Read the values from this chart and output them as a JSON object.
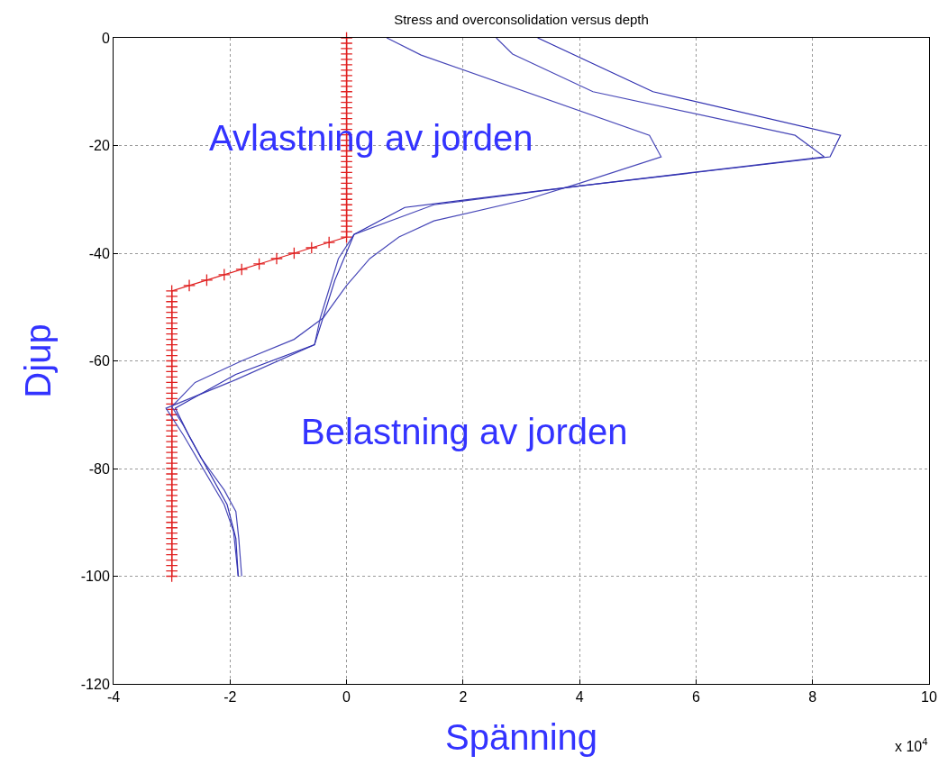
{
  "chart_data": {
    "type": "line",
    "title": "Stress and overconsolidation versus depth",
    "xlabel": "Spänning",
    "ylabel": "Djup",
    "annotations": [
      "Avlastning av jorden",
      "Belastning av jorden",
      "x 10$^{4}$"
    ],
    "xlim": [
      -4,
      10
    ],
    "xticks": [
      -4,
      -2,
      0,
      2,
      4,
      6,
      8,
      10
    ],
    "ylim": [
      -120,
      0
    ],
    "yticks": [
      -120,
      -100,
      -80,
      -60,
      -40,
      -20,
      0
    ],
    "grid": true,
    "series": [
      {
        "color": "#e02020",
        "marker": "cross",
        "x": [
          0,
          0,
          0,
          0,
          0,
          0,
          0,
          0,
          0,
          0,
          0,
          0,
          0,
          0,
          0,
          0,
          0,
          0,
          0,
          0,
          0,
          0,
          0,
          0,
          0,
          0,
          0,
          0,
          0,
          0,
          0,
          0,
          0,
          0,
          0,
          0,
          0,
          0,
          -0.3,
          -0.6,
          -0.9,
          -1.2,
          -1.5,
          -1.8,
          -2.1,
          -2.4,
          -2.7,
          -3,
          -3,
          -3,
          -3,
          -3,
          -3,
          -3,
          -3,
          -3,
          -3,
          -3,
          -3,
          -3,
          -3,
          -3,
          -3,
          -3,
          -3,
          -3,
          -3,
          -3,
          -3,
          -3,
          -3,
          -3,
          -3,
          -3,
          -3,
          -3,
          -3,
          -3,
          -3,
          -3,
          -3,
          -3,
          -3,
          -3,
          -3,
          -3,
          -3,
          -3,
          -3,
          -3,
          -3,
          -3,
          -3,
          -3,
          -3,
          -3,
          -3,
          -3,
          -3,
          -3,
          -3
        ],
        "values": [
          0,
          -1,
          -2,
          -3,
          -4,
          -5,
          -6,
          -7,
          -8,
          -9,
          -10,
          -11,
          -12,
          -13,
          -14,
          -15,
          -16,
          -17,
          -18,
          -19,
          -20,
          -21,
          -22,
          -23,
          -24,
          -25,
          -26,
          -27,
          -28,
          -29,
          -30,
          -31,
          -32,
          -33,
          -34,
          -35,
          -36,
          -37,
          -38,
          -39,
          -40,
          -41,
          -42,
          -43,
          -44,
          -45,
          -46,
          -47,
          -48,
          -49,
          -50,
          -51,
          -52,
          -53,
          -54,
          -55,
          -56,
          -57,
          -58,
          -59,
          -60,
          -61,
          -62,
          -63,
          -64,
          -65,
          -66,
          -67,
          -68,
          -69,
          -70,
          -71,
          -72,
          -73,
          -74,
          -75,
          -76,
          -77,
          -78,
          -79,
          -80,
          -81,
          -82,
          -83,
          -84,
          -85,
          -86,
          -87,
          -88,
          -89,
          -90,
          -91,
          -92,
          -93,
          -94,
          -95,
          -96,
          -97,
          -98,
          -99,
          -100
        ]
      },
      {
        "color": "#4848b8",
        "marker": "none",
        "x": [
          0.69,
          1.28,
          5.2,
          5.4,
          4.0,
          3.1,
          1.5,
          0.9,
          0.4,
          0.0,
          -0.4,
          -0.9,
          -1.8,
          -2.6,
          -3.0,
          -2.8,
          -2.5,
          -2.1,
          -1.9,
          -1.85,
          -1.8
        ],
        "values": [
          0,
          -3.2,
          -18.1,
          -22.1,
          -27,
          -30,
          -34,
          -37,
          -41,
          -46,
          -52,
          -56,
          -60,
          -64,
          -68.5,
          -72,
          -78,
          -84,
          -88,
          -93,
          -100
        ]
      },
      {
        "color": "#4848b8",
        "marker": "none",
        "x": [
          2.57,
          2.85,
          4.23,
          7.7,
          8.2,
          4.0,
          1.5,
          0.13,
          -0.14,
          -0.45,
          -0.55,
          -1.9,
          -3.1,
          -2.8,
          -2.1,
          -1.94,
          -1.86
        ],
        "values": [
          0,
          -3,
          -10,
          -18.1,
          -22.1,
          -27.5,
          -31,
          -36.5,
          -41,
          -52,
          -57,
          -63.5,
          -68.8,
          -73.8,
          -86.7,
          -91.7,
          -100
        ]
      },
      {
        "color": "#3030b0",
        "marker": "none",
        "x": [
          3.28,
          5.26,
          8.48,
          8.3,
          4.0,
          1.0,
          0.13,
          -0.2,
          -0.55,
          -1.9,
          -2.94,
          -2.7,
          -2.05,
          -1.9,
          -1.86
        ],
        "values": [
          0,
          -10,
          -18.1,
          -22.1,
          -27.5,
          -31.5,
          -36.5,
          -45,
          -57,
          -62.5,
          -68.8,
          -74,
          -86.7,
          -93,
          -100
        ]
      }
    ]
  }
}
